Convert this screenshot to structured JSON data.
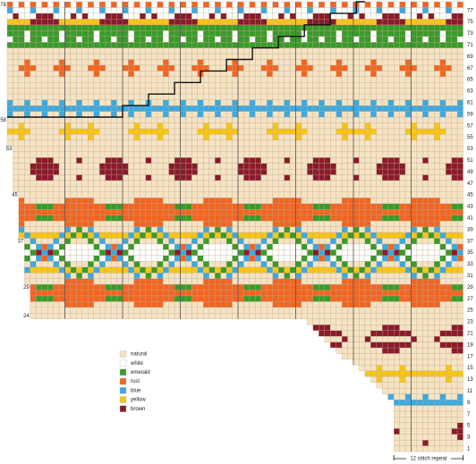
{
  "chart": {
    "row_numbers_right": [
      "77",
      "75",
      "73",
      "71",
      "69",
      "67",
      "65",
      "63",
      "61",
      "59",
      "57",
      "55",
      "53",
      "51",
      "49",
      "47",
      "45",
      "43",
      "41",
      "39",
      "37",
      "35",
      "33",
      "31",
      "29",
      "27",
      "25",
      "23",
      "21",
      "19",
      "17",
      "15",
      "13",
      "11",
      "9",
      "7",
      "5",
      "3",
      "1"
    ],
    "row_numbers_left": [
      "78",
      "58",
      "53",
      "45",
      "37",
      "29",
      "24"
    ],
    "legend": [
      {
        "label": "natural",
        "color": "#f6e3c3"
      },
      {
        "label": "white",
        "color": "#ffffff"
      },
      {
        "label": "emerald",
        "color": "#3a9a2a"
      },
      {
        "label": "rust",
        "color": "#f26522"
      },
      {
        "label": "blue",
        "color": "#3ca9e0"
      },
      {
        "label": "yellow",
        "color": "#f7c515"
      },
      {
        "label": "brown",
        "color": "#8b1a2b"
      }
    ],
    "repeat_label": "12 stitch repeat"
  }
}
